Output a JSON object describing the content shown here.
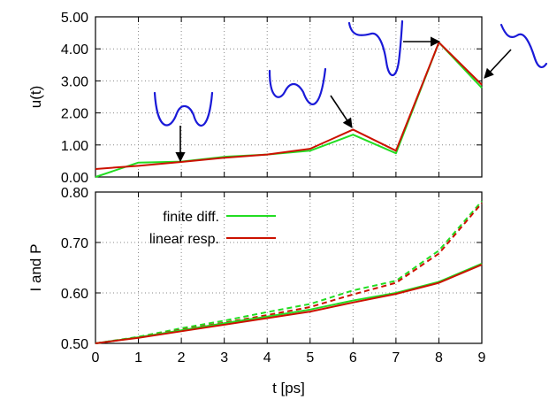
{
  "chart_data": [
    {
      "type": "line",
      "ylabel": "u(t)",
      "ylim": [
        0,
        5
      ],
      "xlim": [
        0,
        9
      ],
      "yticks": [
        "0.00",
        "1.00",
        "2.00",
        "3.00",
        "4.00",
        "5.00"
      ],
      "grid": true,
      "x": [
        0,
        1,
        2,
        3,
        4,
        5,
        6,
        7,
        8,
        9
      ],
      "series": [
        {
          "name": "finite diff.",
          "color": "#22dd22",
          "values": [
            0.0,
            0.45,
            0.48,
            0.63,
            0.7,
            0.82,
            1.32,
            0.74,
            4.2,
            2.78
          ]
        },
        {
          "name": "linear resp.",
          "color": "#cc1100",
          "values": [
            0.25,
            0.35,
            0.47,
            0.6,
            0.7,
            0.88,
            1.48,
            0.82,
            4.2,
            2.88
          ]
        }
      ],
      "annotations": [
        {
          "type": "arrow",
          "direction": "down",
          "target_x": 2,
          "target_y": 0.47,
          "inset": "double-well-symmetric"
        },
        {
          "type": "arrow",
          "direction": "down-right",
          "target_x": 6,
          "target_y": 1.5,
          "inset": "double-well-asymmetric"
        },
        {
          "type": "arrow",
          "direction": "right",
          "target_x": 8,
          "target_y": 4.2,
          "inset": "double-well-tilted"
        },
        {
          "type": "arrow",
          "direction": "down-left",
          "target_x": 9,
          "target_y": 2.9,
          "inset": "single-well"
        }
      ]
    },
    {
      "type": "line",
      "ylabel": "I and P",
      "xlabel": "t [ps]",
      "ylim": [
        0.5,
        0.8
      ],
      "xlim": [
        0,
        9
      ],
      "yticks": [
        "0.50",
        "0.60",
        "0.70",
        "0.80"
      ],
      "xticks": [
        "0",
        "1",
        "2",
        "3",
        "4",
        "5",
        "6",
        "7",
        "8",
        "9"
      ],
      "grid": true,
      "legend": "top-left",
      "legend_entries": [
        {
          "label": "finite diff.",
          "color": "#22dd22"
        },
        {
          "label": "linear resp.",
          "color": "#cc1100"
        }
      ],
      "x": [
        0,
        1,
        2,
        3,
        4,
        5,
        6,
        7,
        8,
        9
      ],
      "series": [
        {
          "color": "#22dd22",
          "style": "dashed",
          "values": [
            0.5,
            0.513,
            0.53,
            0.545,
            0.562,
            0.578,
            0.605,
            0.624,
            0.684,
            0.782
          ]
        },
        {
          "color": "#cc1100",
          "style": "dashed",
          "values": [
            0.5,
            0.512,
            0.527,
            0.541,
            0.556,
            0.572,
            0.597,
            0.62,
            0.678,
            0.778
          ]
        },
        {
          "color": "#22dd22",
          "style": "solid",
          "values": [
            0.5,
            0.512,
            0.526,
            0.54,
            0.553,
            0.567,
            0.585,
            0.6,
            0.622,
            0.658
          ]
        },
        {
          "color": "#cc1100",
          "style": "solid",
          "values": [
            0.5,
            0.511,
            0.524,
            0.537,
            0.55,
            0.563,
            0.581,
            0.598,
            0.62,
            0.656
          ]
        }
      ]
    }
  ]
}
